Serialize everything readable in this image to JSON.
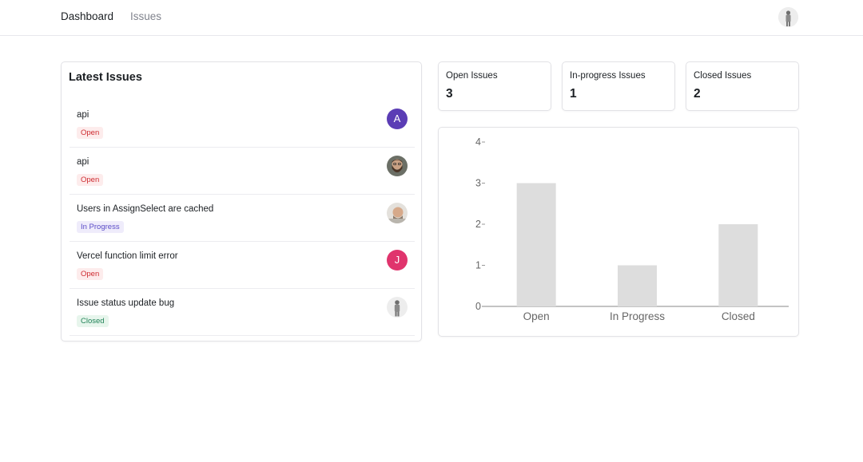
{
  "nav": {
    "links": [
      "Dashboard",
      "Issues"
    ]
  },
  "latest_issues": {
    "title": "Latest Issues",
    "items": [
      {
        "title": "api",
        "status": "Open",
        "avatar": "initial",
        "initial": "A",
        "avatar_color": "#5b3db5"
      },
      {
        "title": "api",
        "status": "Open",
        "avatar": "photo-bearded-man"
      },
      {
        "title": "Users in AssignSelect are cached",
        "status": "In Progress",
        "avatar": "photo-man-portrait"
      },
      {
        "title": "Vercel function limit error",
        "status": "Open",
        "avatar": "initial",
        "initial": "J",
        "avatar_color": "#e0346d"
      },
      {
        "title": "Issue status update bug",
        "status": "Closed",
        "avatar": "photo-standing-figure"
      }
    ]
  },
  "stats": [
    {
      "label": "Open Issues",
      "value": "3"
    },
    {
      "label": "In-progress Issues",
      "value": "1"
    },
    {
      "label": "Closed Issues",
      "value": "2"
    }
  ],
  "chart_data": {
    "type": "bar",
    "categories": [
      "Open",
      "In Progress",
      "Closed"
    ],
    "values": [
      3,
      1,
      2
    ],
    "ylim": [
      0,
      4
    ],
    "yticks": [
      0,
      1,
      2,
      3,
      4
    ],
    "bar_color": "#dddddd",
    "grid": false
  },
  "colors": {
    "open_badge_bg": "#fdecec",
    "open_badge_text": "#ce2c31",
    "progress_badge_bg": "#efecfb",
    "progress_badge_text": "#5b4cc7",
    "closed_badge_bg": "#e7f5ec",
    "closed_badge_text": "#218358"
  }
}
